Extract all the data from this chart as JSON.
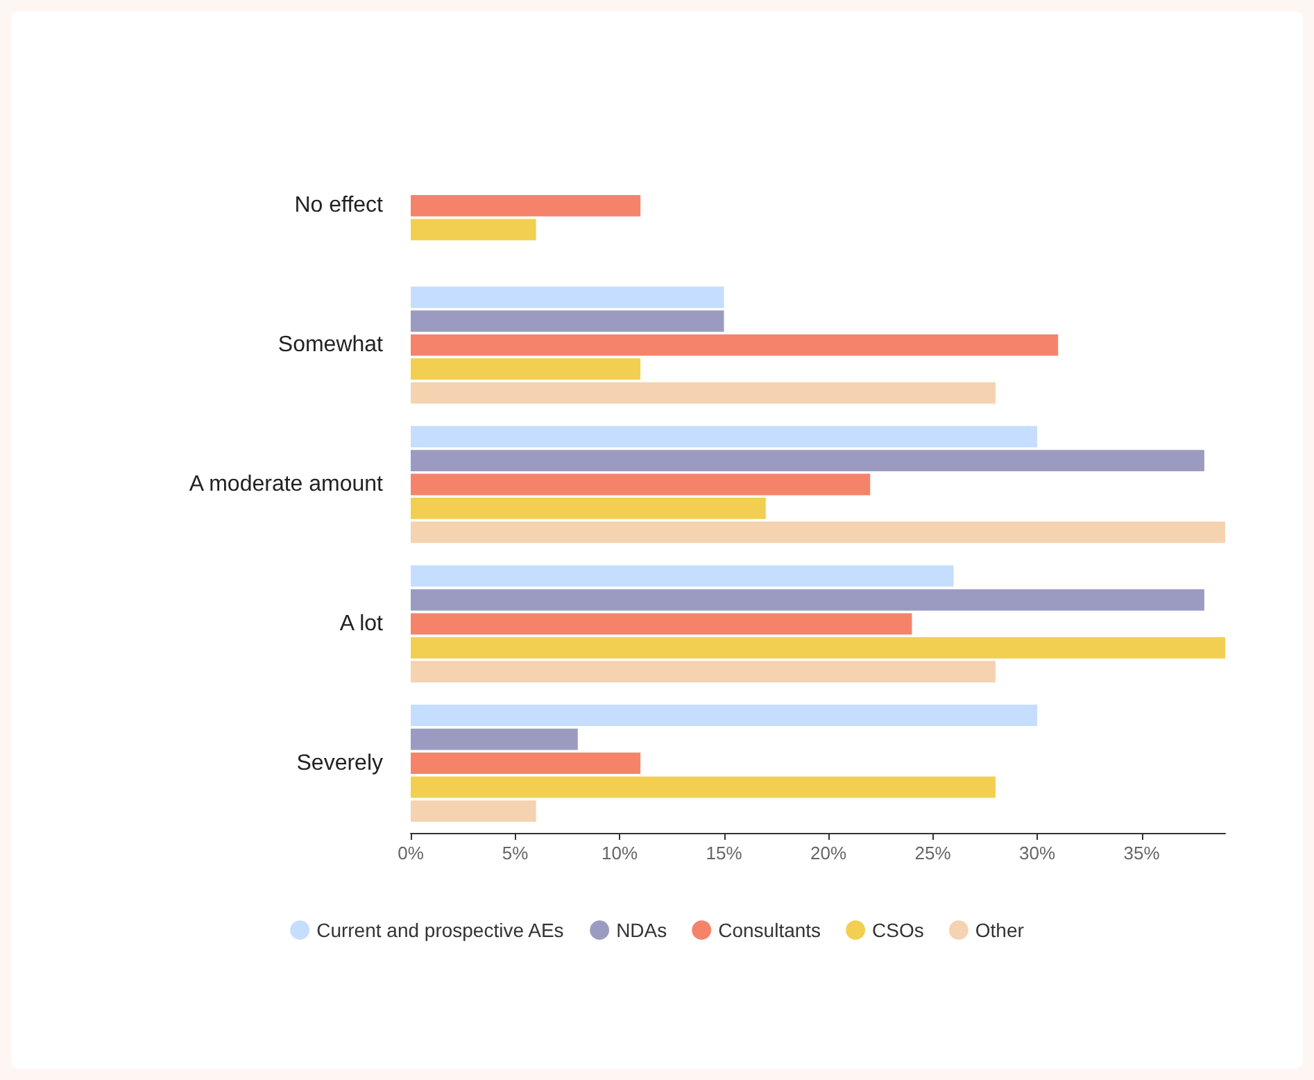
{
  "chart_data": {
    "type": "bar",
    "orientation": "horizontal",
    "categories": [
      "No effect",
      "Somewhat",
      "A moderate amount",
      "A lot",
      "Severely"
    ],
    "series": [
      {
        "name": "Current and prospective AEs",
        "color": "#c5deff",
        "values": [
          null,
          15,
          30,
          26,
          30
        ]
      },
      {
        "name": "NDAs",
        "color": "#9b9bc2",
        "values": [
          null,
          15,
          38,
          38,
          8
        ]
      },
      {
        "name": "Consultants",
        "color": "#f5836a",
        "values": [
          11,
          31,
          22,
          24,
          11
        ]
      },
      {
        "name": "CSOs",
        "color": "#f2cf50",
        "values": [
          6,
          11,
          17,
          39,
          28
        ]
      },
      {
        "name": "Other",
        "color": "#f5d2b0",
        "values": [
          null,
          28,
          39,
          28,
          6
        ]
      }
    ],
    "xlim": [
      0,
      39
    ],
    "xticks": [
      {
        "value": 0,
        "label": "0%"
      },
      {
        "value": 5,
        "label": "5%"
      },
      {
        "value": 10,
        "label": "10%"
      },
      {
        "value": 15,
        "label": "15%"
      },
      {
        "value": 20,
        "label": "20%"
      },
      {
        "value": 25,
        "label": "25%"
      },
      {
        "value": 30,
        "label": "30%"
      },
      {
        "value": 35,
        "label": "35%"
      }
    ],
    "grid": false,
    "legend": "bottom"
  }
}
